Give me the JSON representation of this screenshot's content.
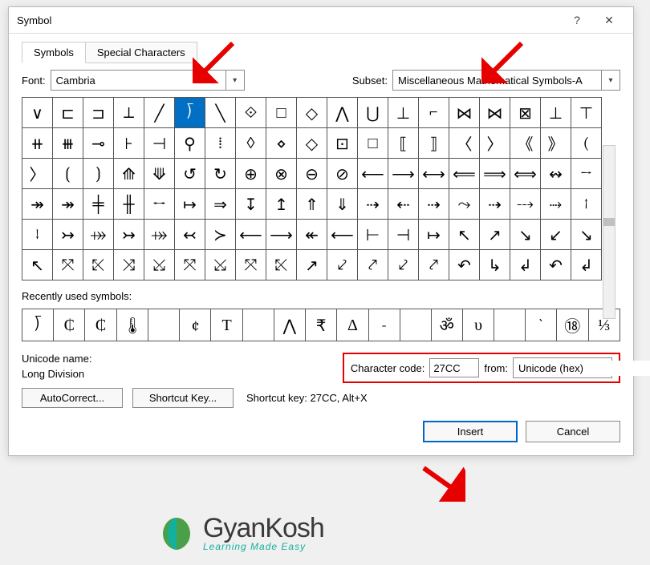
{
  "dialog": {
    "title": "Symbol",
    "tabs": [
      "Symbols",
      "Special Characters"
    ],
    "active_tab": 0,
    "font_label": "Font:",
    "font_value": "Cambria",
    "subset_label": "Subset:",
    "subset_value": "Miscellaneous Mathematical Symbols-A",
    "grid": [
      [
        "∨",
        "⊏",
        "⊐",
        "⟂",
        "╱",
        "⟌",
        "╲",
        "⟐",
        "□",
        "◇",
        "⋀",
        "⋃",
        "⊥",
        "⌐",
        "⋈",
        "⋈",
        "⊠",
        "⊥",
        "⊤"
      ],
      [
        "⧺",
        "⧻",
        "⊸",
        "⊦",
        "⊣",
        "⚲",
        "⁞",
        "◊",
        "⋄",
        "◇",
        "⊡",
        "□",
        "⟦",
        "⟧",
        "〈",
        "〉",
        "《",
        "》",
        "("
      ],
      [
        "〉",
        "⟮",
        "⟯",
        "⟰",
        "⟱",
        "↺",
        "↻",
        "⊕",
        "⊗",
        "⊖",
        "⊘",
        "⟵",
        "⟶",
        "⟷",
        "⟸",
        "⟹",
        "⟺",
        "↭",
        "→"
      ],
      [
        "↠",
        "↠",
        "╪",
        "╫",
        "↔",
        "↦",
        "⇒",
        "↧",
        "↥",
        "⇑",
        "⇓",
        "⇢",
        "⇠",
        "⇢",
        "⤳",
        "⇢",
        "⤏",
        "⤑",
        "↑"
      ],
      [
        "↓",
        "↣",
        "⤀",
        "↣",
        "⤀",
        "↢",
        "≻",
        "⟵",
        "⟶",
        "↞",
        "⟵",
        "⊢",
        "⊣",
        "↦",
        "↖",
        "↗",
        "↘",
        "↙",
        "↘"
      ],
      [
        "↖",
        "⤧",
        "⤪",
        "⤨",
        "⤩",
        "⤧",
        "⤩",
        "⤧",
        "⤪",
        "↗",
        "⤦",
        "⤤",
        "⤦",
        "⤤",
        "↶",
        "↳",
        "↲",
        "↶",
        "↲"
      ]
    ],
    "selected_row": 0,
    "selected_col": 5,
    "recent_label": "Recently used symbols:",
    "recent": [
      "⟌",
      "₵",
      "₵",
      "🌡",
      "",
      "¢",
      "Τ",
      "",
      "⋀",
      "₹",
      "Δ",
      "-",
      "",
      "ॐ",
      "υ",
      "",
      "`",
      "⑱",
      "⅓"
    ],
    "unicode_name_label": "Unicode name:",
    "unicode_name": "Long Division",
    "char_code_label": "Character code:",
    "char_code": "27CC",
    "from_label": "from:",
    "from_value": "Unicode (hex)",
    "autocorrect": "AutoCorrect...",
    "shortcut_key": "Shortcut Key...",
    "shortcut_text": "Shortcut key: 27CC, Alt+X",
    "insert": "Insert",
    "cancel": "Cancel"
  },
  "logo": {
    "name": "GyanKosh",
    "tag": "Learning Made Easy"
  },
  "colors": {
    "highlight": "#006fc4",
    "red": "#e60000"
  }
}
